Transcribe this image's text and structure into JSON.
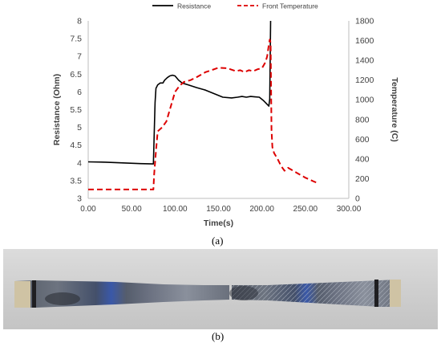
{
  "chart_data": {
    "type": "line",
    "xlabel": "Time(s)",
    "ylabel_left": "Resistance (Ohm)",
    "ylabel_right": "Temperature (C)",
    "xlim": [
      0,
      300
    ],
    "ylim_left": [
      3,
      8
    ],
    "ylim_right": [
      0,
      1800
    ],
    "x_ticks": [
      "0.00",
      "50.00",
      "100.00",
      "150.00",
      "200.00",
      "250.00",
      "300.00"
    ],
    "y_left_ticks": [
      "3",
      "3.5",
      "4",
      "4.5",
      "5",
      "5.5",
      "6",
      "6.5",
      "7",
      "7.5",
      "8"
    ],
    "y_right_ticks": [
      "0",
      "200",
      "400",
      "600",
      "800",
      "1000",
      "1200",
      "1400",
      "1600",
      "1800"
    ],
    "legend_position": "top-center",
    "grid": false,
    "series": [
      {
        "name": "Resistance",
        "axis": "left",
        "color": "#000000",
        "style": "solid",
        "points": [
          [
            0,
            4.03
          ],
          [
            20,
            4.02
          ],
          [
            40,
            4.0
          ],
          [
            60,
            3.98
          ],
          [
            75,
            3.97
          ],
          [
            76,
            4.8
          ],
          [
            77,
            5.7
          ],
          [
            78,
            6.1
          ],
          [
            80,
            6.2
          ],
          [
            83,
            6.25
          ],
          [
            86,
            6.25
          ],
          [
            88,
            6.33
          ],
          [
            91,
            6.4
          ],
          [
            94,
            6.45
          ],
          [
            97,
            6.47
          ],
          [
            100,
            6.45
          ],
          [
            104,
            6.33
          ],
          [
            108,
            6.25
          ],
          [
            115,
            6.2
          ],
          [
            125,
            6.12
          ],
          [
            135,
            6.05
          ],
          [
            145,
            5.95
          ],
          [
            155,
            5.85
          ],
          [
            165,
            5.83
          ],
          [
            172,
            5.85
          ],
          [
            177,
            5.87
          ],
          [
            182,
            5.85
          ],
          [
            187,
            5.87
          ],
          [
            192,
            5.86
          ],
          [
            197,
            5.85
          ],
          [
            202,
            5.75
          ],
          [
            206,
            5.65
          ],
          [
            208,
            5.6
          ],
          [
            209,
            5.8
          ],
          [
            210,
            8.0
          ]
        ]
      },
      {
        "name": "Front Temperature",
        "axis": "right",
        "color": "#dd0000",
        "style": "dashed",
        "points": [
          [
            0,
            90
          ],
          [
            20,
            90
          ],
          [
            40,
            90
          ],
          [
            60,
            90
          ],
          [
            75,
            90
          ],
          [
            76,
            250
          ],
          [
            78,
            480
          ],
          [
            80,
            680
          ],
          [
            85,
            720
          ],
          [
            90,
            780
          ],
          [
            95,
            930
          ],
          [
            100,
            1080
          ],
          [
            105,
            1140
          ],
          [
            110,
            1180
          ],
          [
            118,
            1200
          ],
          [
            125,
            1230
          ],
          [
            135,
            1280
          ],
          [
            145,
            1310
          ],
          [
            150,
            1325
          ],
          [
            160,
            1320
          ],
          [
            170,
            1290
          ],
          [
            175,
            1300
          ],
          [
            180,
            1280
          ],
          [
            185,
            1300
          ],
          [
            190,
            1290
          ],
          [
            195,
            1310
          ],
          [
            200,
            1320
          ],
          [
            204,
            1380
          ],
          [
            206,
            1440
          ],
          [
            208,
            1560
          ],
          [
            209,
            1610
          ],
          [
            210,
            1580
          ],
          [
            211,
            700
          ],
          [
            212,
            520
          ],
          [
            214,
            460
          ],
          [
            218,
            400
          ],
          [
            222,
            330
          ],
          [
            226,
            280
          ],
          [
            230,
            310
          ],
          [
            240,
            260
          ],
          [
            250,
            210
          ],
          [
            260,
            170
          ],
          [
            263,
            160
          ]
        ]
      }
    ]
  },
  "captions": {
    "a": "(a)",
    "b": "(b)"
  }
}
